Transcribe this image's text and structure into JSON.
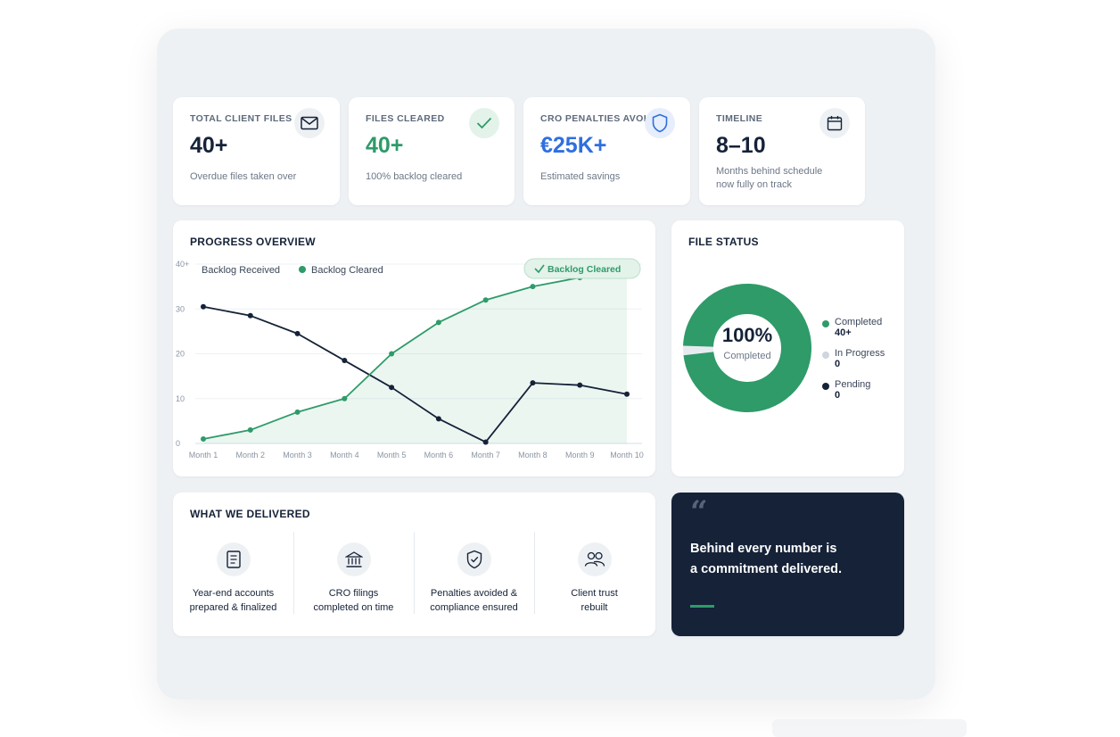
{
  "stats": [
    {
      "label": "TOTAL CLIENT FILES",
      "value": "40+",
      "sub": "Overdue files taken over",
      "icon": "envelope-icon",
      "color": "#152238"
    },
    {
      "label": "FILES CLEARED",
      "value": "40+",
      "sub": "100% backlog cleared",
      "icon": "check-icon",
      "color": "#2e9b69"
    },
    {
      "label": "CRO PENALTIES AVOIDED",
      "value": "€25K+",
      "sub": "Estimated savings",
      "icon": "shield-icon",
      "color": "#2f6fe0"
    },
    {
      "label": "TIMELINE",
      "value": "8–10",
      "sub_line1": "Months behind schedule",
      "sub_line2": "now fully on track",
      "icon": "calendar-icon",
      "color": "#152238"
    }
  ],
  "progress": {
    "title": "PROGRESS OVERVIEW",
    "badge": "Backlog Cleared"
  },
  "chart_data": {
    "type": "line",
    "title": "PROGRESS OVERVIEW",
    "categories": [
      "Month 1",
      "Month 2",
      "Month 3",
      "Month 4",
      "Month 5",
      "Month 6",
      "Month 7",
      "Month 8",
      "Month 9",
      "Month 10"
    ],
    "ytick_labels": [
      "0",
      "10",
      "20",
      "30",
      "40+"
    ],
    "ylim": [
      0,
      40
    ],
    "grid": true,
    "legend": "top-left",
    "series": [
      {
        "name": "Backlog Received",
        "color": "#152238",
        "values": [
          30.5,
          28.5,
          24.5,
          18.5,
          12.5,
          5.5,
          0.3,
          13.5,
          13,
          11
        ]
      },
      {
        "name": "Backlog Cleared",
        "color": "#2e9b69",
        "values": [
          1,
          3,
          7,
          10,
          20,
          27,
          32,
          35,
          37,
          38
        ]
      }
    ],
    "annotation": "Backlog Cleared"
  },
  "file_status": {
    "title": "FILE STATUS",
    "center_value": "100%",
    "center_label": "Completed",
    "items": [
      {
        "label": "Completed",
        "value": "40+",
        "color": "#2e9b69"
      },
      {
        "label": "In Progress",
        "value": "0",
        "color": "#cfd6de"
      },
      {
        "label": "Pending",
        "value": "0",
        "color": "#152238"
      }
    ]
  },
  "delivered": {
    "title": "WHAT WE DELIVERED",
    "items": [
      {
        "line1": "Year-end accounts",
        "line2": "prepared & finalized",
        "icon": "document-icon"
      },
      {
        "line1": "CRO filings",
        "line2": "completed on time",
        "icon": "bank-icon"
      },
      {
        "line1": "Penalties avoided &",
        "line2": "compliance ensured",
        "icon": "shield-check-icon"
      },
      {
        "line1": "Client trust",
        "line2": "rebuilt",
        "icon": "users-icon"
      }
    ]
  },
  "quote": {
    "mark": "“",
    "line1": "Behind every number is",
    "line2": "a commitment delivered.",
    "accent": "#2e9b69",
    "bg": "#152238"
  }
}
